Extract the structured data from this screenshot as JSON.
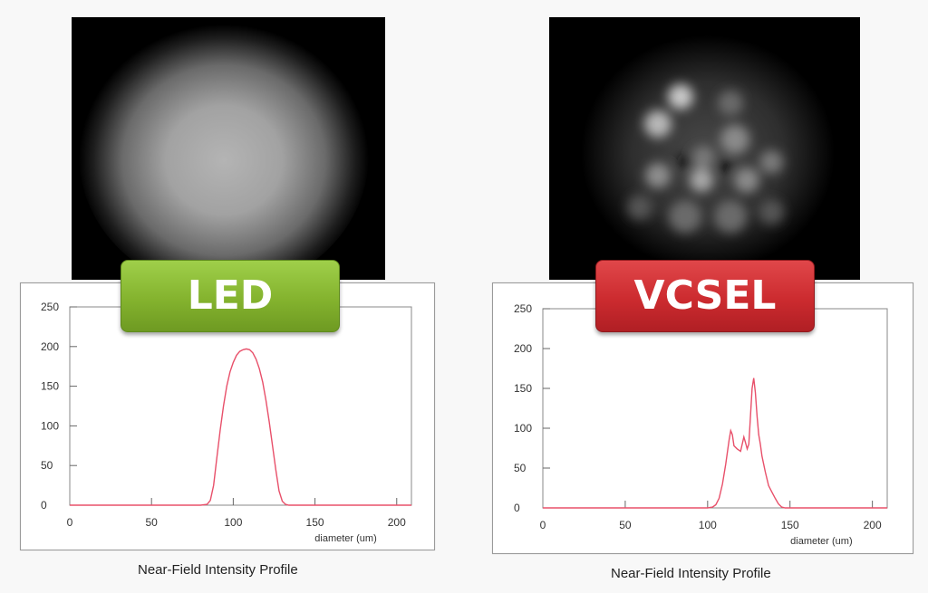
{
  "panels": {
    "led": {
      "badge_label": "LED",
      "badge_color": "#84b32e",
      "caption": "Near-Field Intensity Profile",
      "image_description": "Smooth, uniform circular near-field spot"
    },
    "vcsel": {
      "badge_label": "VCSEL",
      "badge_color": "#cc2b2f",
      "caption": "Near-Field Intensity Profile",
      "image_description": "Speckled multimode near-field spot"
    }
  },
  "line_color": "#e8506a",
  "chart_data": [
    {
      "type": "line",
      "name": "LED",
      "title": "Near-Field Intensity Profile",
      "xlabel": "diameter (um)",
      "ylabel": "",
      "xlim": [
        0,
        209
      ],
      "ylim": [
        0,
        250
      ],
      "xticks": [
        0,
        50,
        100,
        150,
        200
      ],
      "yticks": [
        0,
        50,
        100,
        150,
        200,
        250
      ],
      "grid": false,
      "x": [
        0,
        80,
        84,
        86,
        88,
        90,
        92,
        94,
        96,
        98,
        100,
        102,
        104,
        106,
        108,
        110,
        112,
        114,
        116,
        118,
        120,
        122,
        124,
        126,
        128,
        130,
        132,
        134,
        209
      ],
      "y": [
        0,
        0,
        1,
        6,
        25,
        60,
        95,
        125,
        150,
        168,
        180,
        189,
        194,
        196,
        197,
        196,
        192,
        184,
        172,
        155,
        132,
        105,
        75,
        45,
        18,
        5,
        1,
        0,
        0
      ]
    },
    {
      "type": "line",
      "name": "VCSEL",
      "title": "Near-Field Intensity Profile",
      "xlabel": "diameter (um)",
      "ylabel": "",
      "xlim": [
        0,
        209
      ],
      "ylim": [
        0,
        250
      ],
      "xticks": [
        0,
        50,
        100,
        150,
        200
      ],
      "yticks": [
        0,
        50,
        100,
        150,
        200,
        250
      ],
      "grid": false,
      "x": [
        0,
        100,
        103,
        105,
        107,
        109,
        111,
        113,
        114,
        115,
        116,
        118,
        120,
        121,
        122,
        123,
        124,
        125,
        126,
        127,
        128,
        129,
        130,
        131,
        132,
        133,
        135,
        137,
        139,
        141,
        143,
        145,
        147,
        209
      ],
      "y": [
        0,
        0,
        1,
        4,
        12,
        30,
        55,
        85,
        97,
        92,
        78,
        74,
        71,
        80,
        89,
        82,
        74,
        80,
        115,
        150,
        163,
        145,
        115,
        92,
        80,
        65,
        45,
        28,
        20,
        12,
        5,
        1,
        0,
        0
      ]
    }
  ]
}
